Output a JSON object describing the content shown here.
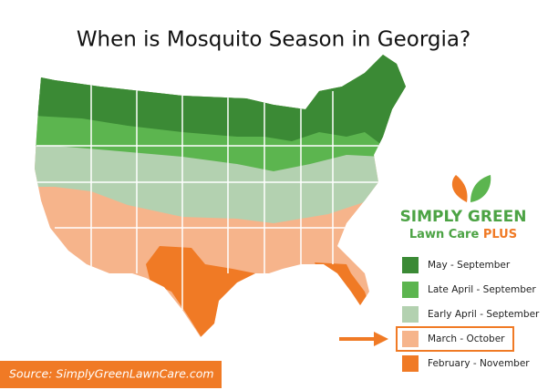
{
  "title": "When is Mosquito Season in Georgia?",
  "logo": {
    "brand": "SIMPLY GREEN",
    "subline": "Lawn Care",
    "badge": "PLUS"
  },
  "legend": [
    {
      "label": "May - September",
      "color": "#3b8a35"
    },
    {
      "label": "Late April - September",
      "color": "#5cb54f"
    },
    {
      "label": "Early April - September",
      "color": "#b3d1b0"
    },
    {
      "label": "March - October",
      "color": "#f6b48b"
    },
    {
      "label": "February - November",
      "color": "#f07a25"
    }
  ],
  "highlight": 3,
  "source": "Source: SimplyGreenLawnCare.com"
}
